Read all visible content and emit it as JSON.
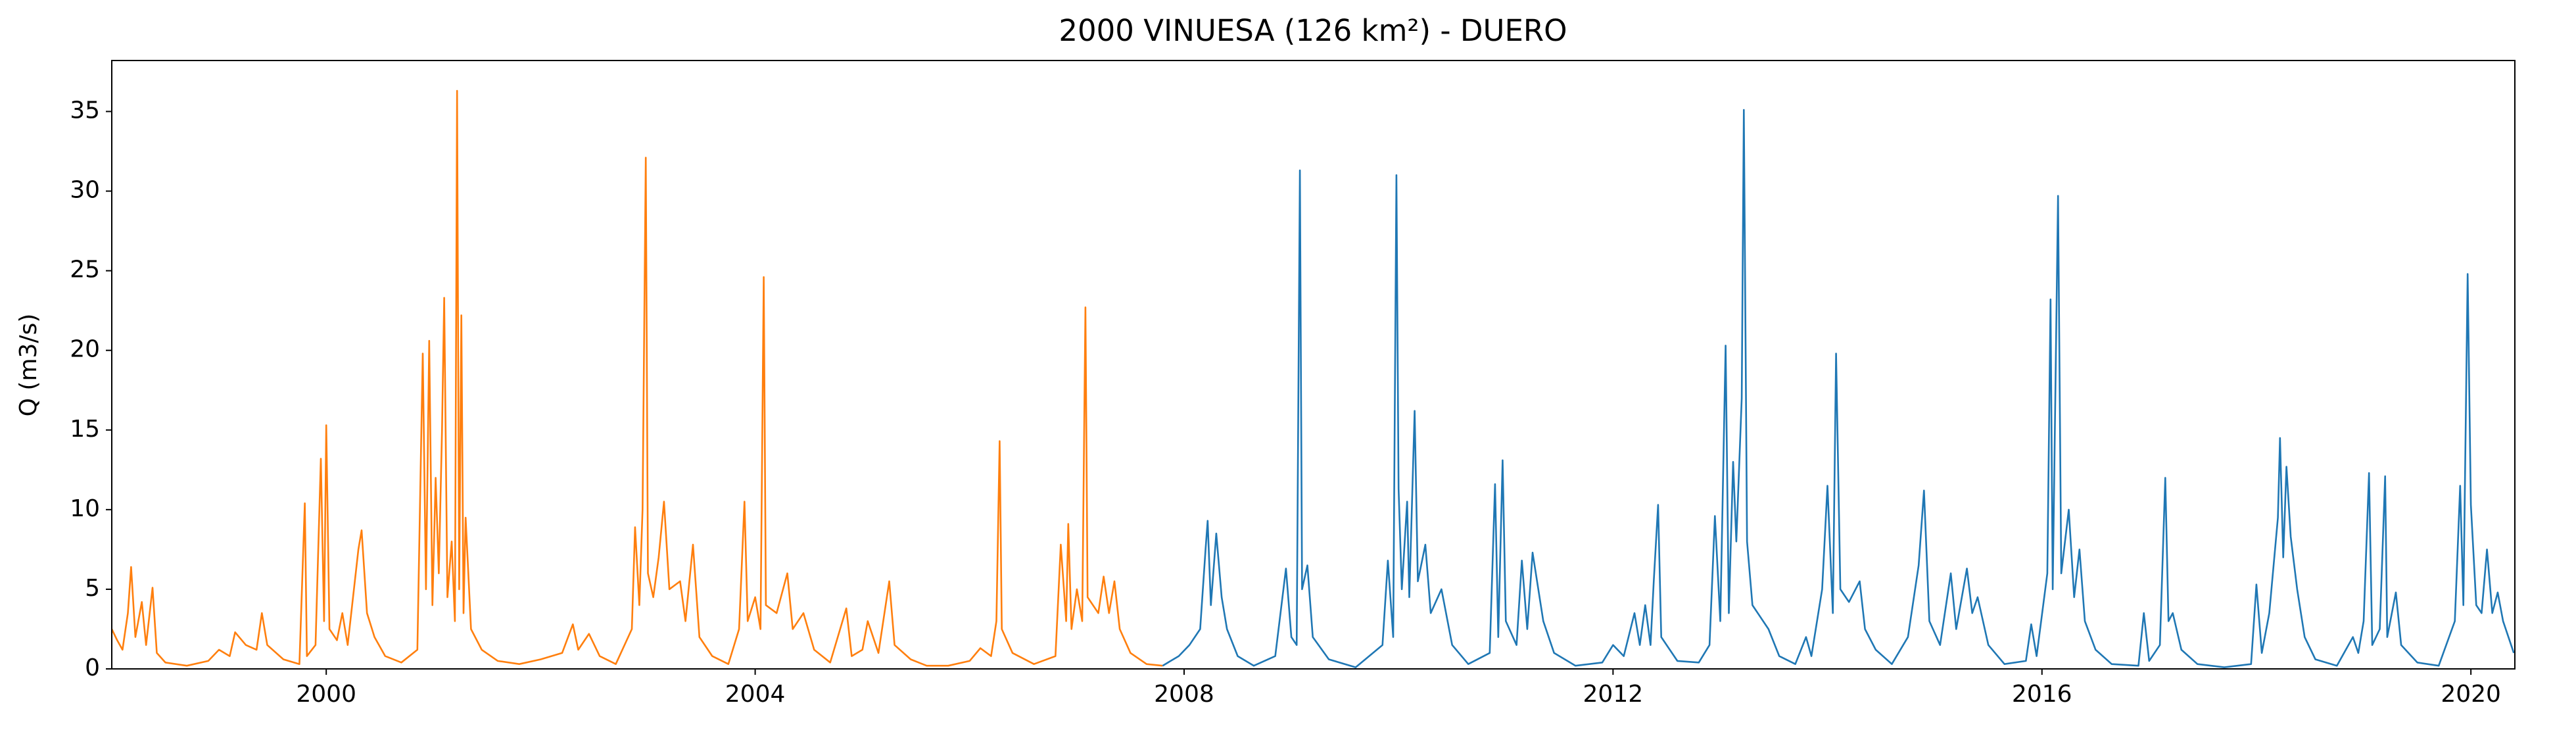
{
  "chart_data": {
    "type": "line",
    "title": "2000 VINUESA (126 km²) - DUERO",
    "y_label": "Q (m3/s)",
    "xlim": [
      1998.0,
      2020.41
    ],
    "xticks": [
      2000,
      2004,
      2008,
      2012,
      2016,
      2020
    ],
    "ylim": [
      0,
      38.2
    ],
    "yticks": [
      0,
      5,
      10,
      15,
      20,
      25,
      30,
      35
    ],
    "grid": false,
    "series": [
      {
        "color": "#ff7f0e",
        "x": [
          1998.0,
          1998.05,
          1998.1,
          1998.15,
          1998.18,
          1998.22,
          1998.28,
          1998.32,
          1998.38,
          1998.42,
          1998.5,
          1998.7,
          1998.9,
          1999.0,
          1999.1,
          1999.15,
          1999.25,
          1999.35,
          1999.4,
          1999.45,
          1999.6,
          1999.75,
          1999.8,
          1999.82,
          1999.9,
          1999.95,
          1999.98,
          2000.0,
          2000.03,
          2000.1,
          2000.15,
          2000.2,
          2000.3,
          2000.33,
          2000.38,
          2000.45,
          2000.55,
          2000.7,
          2000.85,
          2000.9,
          2000.93,
          2000.96,
          2000.99,
          2001.02,
          2001.05,
          2001.08,
          2001.1,
          2001.13,
          2001.17,
          2001.2,
          2001.22,
          2001.24,
          2001.26,
          2001.28,
          2001.3,
          2001.35,
          2001.45,
          2001.6,
          2001.8,
          2002.0,
          2002.2,
          2002.3,
          2002.35,
          2002.45,
          2002.55,
          2002.7,
          2002.85,
          2002.88,
          2002.92,
          2002.95,
          2002.98,
          2003.0,
          2003.05,
          2003.1,
          2003.15,
          2003.2,
          2003.3,
          2003.35,
          2003.42,
          2003.48,
          2003.6,
          2003.75,
          2003.85,
          2003.9,
          2003.93,
          2004.0,
          2004.05,
          2004.08,
          2004.1,
          2004.2,
          2004.3,
          2004.35,
          2004.45,
          2004.55,
          2004.7,
          2004.85,
          2004.9,
          2005.0,
          2005.05,
          2005.15,
          2005.25,
          2005.3,
          2005.45,
          2005.6,
          2005.8,
          2006.0,
          2006.1,
          2006.2,
          2006.25,
          2006.28,
          2006.3,
          2006.4,
          2006.6,
          2006.8,
          2006.85,
          2006.9,
          2006.92,
          2006.95,
          2007.0,
          2007.05,
          2007.08,
          2007.1,
          2007.2,
          2007.25,
          2007.3,
          2007.35,
          2007.4,
          2007.5,
          2007.65,
          2007.8
        ],
        "values": [
          2.5,
          1.8,
          1.2,
          3.5,
          6.4,
          2.0,
          4.2,
          1.5,
          5.1,
          1.0,
          0.4,
          0.2,
          0.5,
          1.2,
          0.8,
          2.3,
          1.5,
          1.2,
          3.5,
          1.5,
          0.6,
          0.3,
          10.4,
          0.8,
          1.5,
          13.2,
          3,
          15.3,
          2.5,
          1.8,
          3.5,
          1.5,
          7.5,
          8.7,
          3.5,
          2.0,
          0.8,
          0.4,
          1.2,
          19.8,
          5,
          20.6,
          4,
          12,
          6,
          15,
          23.3,
          4.5,
          8,
          3,
          36.3,
          5,
          22.2,
          3.5,
          9.5,
          2.5,
          1.2,
          0.5,
          0.3,
          0.6,
          1.0,
          2.8,
          1.2,
          2.2,
          0.8,
          0.3,
          2.5,
          8.9,
          4,
          10,
          32.1,
          6,
          4.5,
          7,
          10.5,
          5.0,
          5.5,
          3,
          7.8,
          2.0,
          0.8,
          0.3,
          2.5,
          10.5,
          3.0,
          4.5,
          2.5,
          24.6,
          4,
          3.5,
          6.0,
          2.5,
          3.5,
          1.2,
          0.4,
          3.8,
          0.8,
          1.2,
          3.0,
          1.0,
          5.5,
          1.5,
          0.6,
          0.2,
          0.2,
          0.5,
          1.3,
          0.8,
          3.0,
          14.3,
          2.5,
          1.0,
          0.3,
          0.8,
          7.8,
          3.0,
          9.1,
          2.5,
          5.0,
          3.0,
          22.7,
          4.5,
          3.5,
          5.8,
          3.5,
          5.5,
          2.5,
          1.0,
          0.3,
          0.2
        ]
      },
      {
        "color": "#1f77b4",
        "x": [
          2007.8,
          2007.95,
          2008.05,
          2008.15,
          2008.2,
          2008.22,
          2008.25,
          2008.3,
          2008.35,
          2008.4,
          2008.5,
          2008.65,
          2008.85,
          2008.95,
          2009.0,
          2009.05,
          2009.08,
          2009.1,
          2009.15,
          2009.2,
          2009.35,
          2009.6,
          2009.85,
          2009.9,
          2009.95,
          2009.98,
          2010.0,
          2010.03,
          2010.08,
          2010.1,
          2010.15,
          2010.18,
          2010.25,
          2010.3,
          2010.4,
          2010.5,
          2010.65,
          2010.85,
          2010.9,
          2010.93,
          2010.97,
          2011.0,
          2011.1,
          2011.15,
          2011.2,
          2011.25,
          2011.35,
          2011.45,
          2011.65,
          2011.9,
          2012.0,
          2012.1,
          2012.2,
          2012.25,
          2012.3,
          2012.35,
          2012.38,
          2012.42,
          2012.45,
          2012.6,
          2012.8,
          2012.9,
          2012.95,
          2013.0,
          2013.05,
          2013.08,
          2013.12,
          2013.15,
          2013.2,
          2013.22,
          2013.25,
          2013.3,
          2013.35,
          2013.45,
          2013.55,
          2013.7,
          2013.8,
          2013.85,
          2013.95,
          2014.0,
          2014.05,
          2014.08,
          2014.12,
          2014.2,
          2014.3,
          2014.35,
          2014.45,
          2014.6,
          2014.75,
          2014.85,
          2014.9,
          2014.95,
          2015.05,
          2015.15,
          2015.2,
          2015.3,
          2015.35,
          2015.4,
          2015.5,
          2015.65,
          2015.85,
          2015.9,
          2015.95,
          2016.05,
          2016.08,
          2016.1,
          2016.15,
          2016.18,
          2016.25,
          2016.3,
          2016.35,
          2016.4,
          2016.5,
          2016.65,
          2016.9,
          2016.95,
          2017.0,
          2017.1,
          2017.15,
          2017.18,
          2017.22,
          2017.3,
          2017.45,
          2017.7,
          2017.95,
          2018.0,
          2018.05,
          2018.12,
          2018.2,
          2018.22,
          2018.25,
          2018.28,
          2018.32,
          2018.38,
          2018.45,
          2018.55,
          2018.75,
          2018.9,
          2018.95,
          2019.0,
          2019.05,
          2019.08,
          2019.15,
          2019.2,
          2019.22,
          2019.3,
          2019.35,
          2019.5,
          2019.7,
          2019.85,
          2019.9,
          2019.93,
          2019.97,
          2020.0,
          2020.05,
          2020.1,
          2020.15,
          2020.2,
          2020.25,
          2020.3,
          2020.4
        ],
        "values": [
          0.2,
          0.8,
          1.5,
          2.5,
          7.5,
          9.3,
          4,
          8.5,
          4.5,
          2.5,
          0.8,
          0.2,
          0.8,
          6.3,
          2.0,
          1.5,
          31.3,
          5.0,
          6.5,
          2.0,
          0.6,
          0.1,
          1.5,
          6.8,
          2.0,
          31.0,
          11.3,
          5,
          10.5,
          4.5,
          16.2,
          5.5,
          7.8,
          3.5,
          5.0,
          1.5,
          0.3,
          1.0,
          11.6,
          2,
          13.1,
          3,
          1.5,
          6.8,
          2.5,
          7.3,
          3.0,
          1.0,
          0.2,
          0.4,
          1.5,
          0.8,
          3.5,
          1.5,
          4.0,
          1.5,
          5.5,
          10.3,
          2.0,
          0.5,
          0.4,
          1.5,
          9.6,
          3,
          20.3,
          3.5,
          13.0,
          8,
          17,
          35.1,
          8,
          4,
          3.5,
          2.5,
          0.8,
          0.3,
          2.0,
          0.8,
          5,
          11.5,
          3.5,
          19.8,
          5,
          4.2,
          5.5,
          2.5,
          1.2,
          0.3,
          2.0,
          6.5,
          11.2,
          3.0,
          1.5,
          6.0,
          2.5,
          6.3,
          3.5,
          4.5,
          1.5,
          0.3,
          0.5,
          2.8,
          0.8,
          6,
          23.2,
          5,
          29.7,
          6,
          10,
          4.5,
          7.5,
          3.0,
          1.2,
          0.3,
          0.2,
          3.5,
          0.5,
          1.5,
          12.0,
          3.0,
          3.5,
          1.2,
          0.3,
          0.1,
          0.3,
          5.3,
          1.0,
          3.5,
          9.5,
          14.5,
          7,
          12.7,
          8.3,
          5,
          2,
          0.6,
          0.2,
          2.0,
          1.0,
          3.0,
          12.3,
          1.5,
          2.5,
          12.1,
          2.0,
          4.8,
          1.5,
          0.4,
          0.2,
          3.0,
          11.5,
          4,
          24.8,
          10.3,
          4,
          3.5,
          7.5,
          3.5,
          4.8,
          3.0,
          1.0
        ]
      }
    ]
  }
}
